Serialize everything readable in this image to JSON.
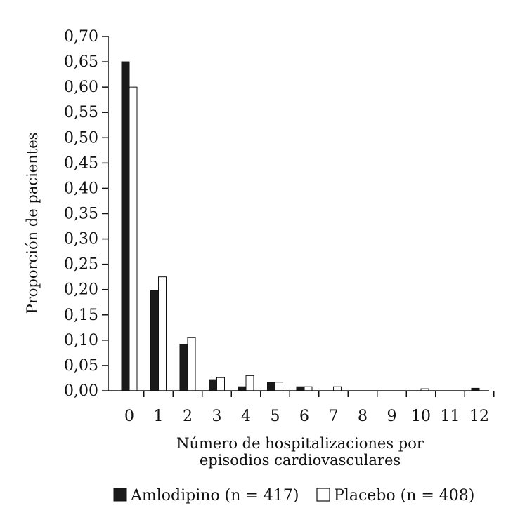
{
  "chart_data": {
    "type": "bar",
    "categories": [
      "0",
      "1",
      "2",
      "3",
      "4",
      "5",
      "6",
      "7",
      "8",
      "9",
      "10",
      "11",
      "12"
    ],
    "series": [
      {
        "name": "Amlodipino (n = 417)",
        "values": [
          0.65,
          0.198,
          0.092,
          0.022,
          0.008,
          0.017,
          0.008,
          0.0,
          0.0,
          0.0,
          0.0,
          0.0,
          0.005
        ],
        "color": "#1a1a1a"
      },
      {
        "name": "Placebo (n = 408)",
        "values": [
          0.6,
          0.225,
          0.105,
          0.026,
          0.03,
          0.017,
          0.008,
          0.008,
          0.0,
          0.0,
          0.004,
          0.0,
          0.0
        ],
        "color": "#ffffff"
      }
    ],
    "yticks": [
      "0,00",
      "0,05",
      "0,10",
      "0,15",
      "0,20",
      "0,25",
      "0,30",
      "0,35",
      "0,40",
      "0,45",
      "0,50",
      "0,55",
      "0,60",
      "0,65",
      "0,70"
    ],
    "ylim": [
      0,
      0.7
    ],
    "ylabel": "Proporción de pacientes",
    "xlabel_line1": "Número de hospitalizaciones por",
    "xlabel_line2": "episodios cardiovasculares",
    "legend_position": "bottom",
    "grid": false
  }
}
